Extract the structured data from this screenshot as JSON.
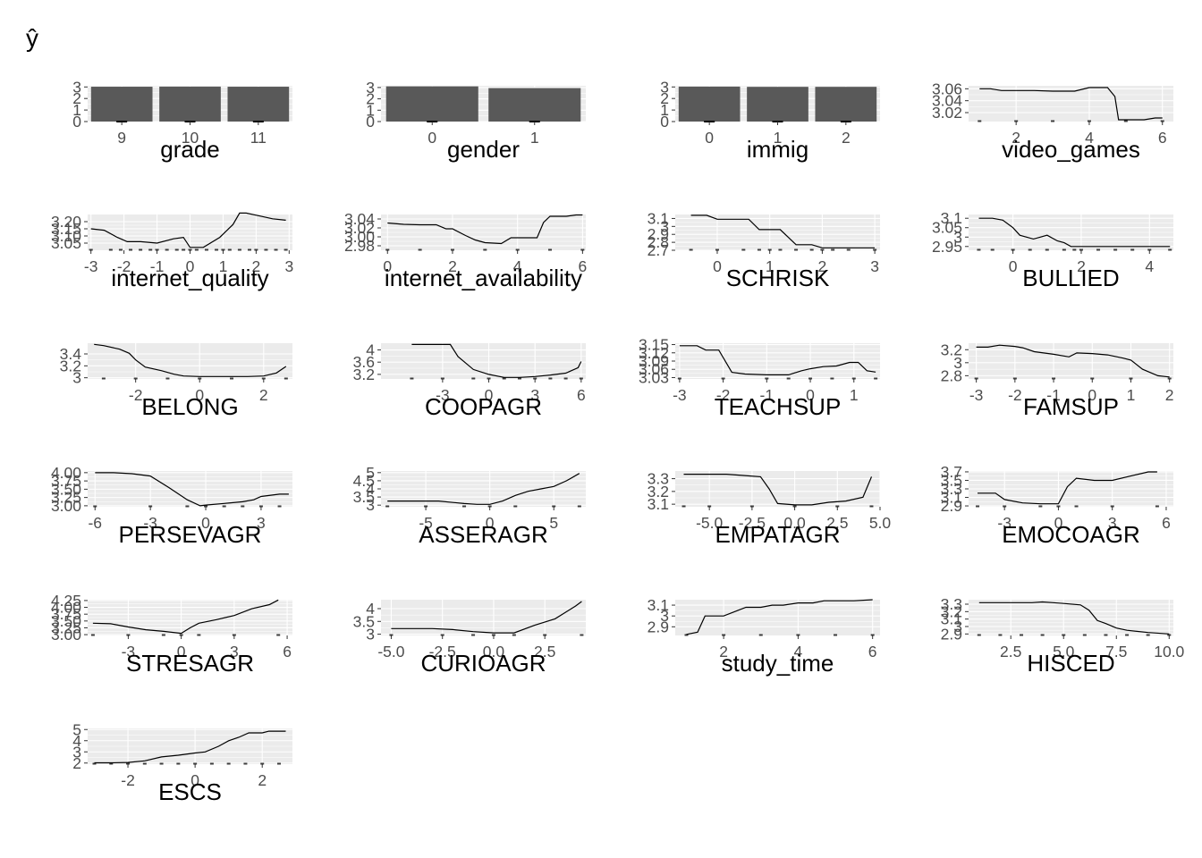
{
  "y_axis_label": "ŷ",
  "colors": {
    "panel": "#ebebeb",
    "grid": "#ffffff",
    "line": "#000000",
    "bar": "#595959",
    "rug": "#000000",
    "tick_text": "#4d4d4d"
  },
  "chart_data": [
    {
      "type": "bar",
      "xlabel": "grade",
      "xticks": [
        "9",
        "10",
        "11"
      ],
      "categories": [
        "9",
        "10",
        "11"
      ],
      "values": [
        3.02,
        3.03,
        3.02
      ],
      "yticks": [
        0,
        1,
        2,
        3
      ],
      "ylim": [
        0,
        3.1
      ]
    },
    {
      "type": "bar",
      "xlabel": "gender",
      "xticks": [
        "0",
        "1"
      ],
      "categories": [
        "0",
        "1"
      ],
      "values": [
        3.1,
        2.95
      ],
      "yticks": [
        0,
        1,
        2,
        3
      ],
      "ylim": [
        0,
        3.15
      ]
    },
    {
      "type": "bar",
      "xlabel": "immig",
      "xticks": [
        "0",
        "1",
        "2"
      ],
      "categories": [
        "0",
        "1",
        "2"
      ],
      "values": [
        3.03,
        3.01,
        3.01
      ],
      "yticks": [
        0,
        1,
        2,
        3
      ],
      "ylim": [
        0,
        3.1
      ]
    },
    {
      "type": "line",
      "xlabel": "video_games",
      "xlim": [
        0.7,
        6.3
      ],
      "xticks": [
        2,
        4,
        6
      ],
      "ylim": [
        3.005,
        3.065
      ],
      "yticks": [
        3.02,
        3.04,
        3.06
      ],
      "x": [
        1,
        1.3,
        1.6,
        2,
        2.5,
        3,
        3.5,
        3.6,
        4,
        4.3,
        4.5,
        4.7,
        4.8,
        5.1,
        5.5,
        5.8,
        6
      ],
      "y": [
        3.06,
        3.06,
        3.057,
        3.057,
        3.057,
        3.056,
        3.056,
        3.056,
        3.062,
        3.062,
        3.062,
        3.047,
        3.008,
        3.008,
        3.008,
        3.011,
        3.011
      ],
      "rug": [
        1,
        2,
        3,
        4,
        5,
        6
      ]
    },
    {
      "type": "line",
      "xlabel": "internet_quality",
      "xlim": [
        -3.1,
        3.1
      ],
      "xticks": [
        -3,
        -2,
        -1,
        0,
        1,
        2,
        3
      ],
      "ytick_labels": [
        "3.05",
        "3.10",
        "3.15",
        "3.20"
      ],
      "yticks": [
        3.05,
        3.1,
        3.15,
        3.2
      ],
      "ylim": [
        3.0,
        3.25
      ],
      "x": [
        -3,
        -2.6,
        -2.2,
        -1.9,
        -1.5,
        -1,
        -0.5,
        -0.2,
        0,
        0.4,
        0.9,
        1.3,
        1.5,
        1.7,
        2.1,
        2.5,
        2.9
      ],
      "y": [
        3.15,
        3.14,
        3.09,
        3.06,
        3.06,
        3.05,
        3.08,
        3.09,
        3.02,
        3.02,
        3.09,
        3.18,
        3.26,
        3.26,
        3.24,
        3.22,
        3.21
      ],
      "rug": [
        -3,
        -2.4,
        -2.1,
        -1.8,
        -1.5,
        -1.2,
        -1,
        -0.7,
        -0.4,
        -0.2,
        0,
        0.2,
        0.5,
        0.8,
        1,
        1.2,
        1.5,
        1.8,
        2,
        2.3,
        2.6,
        2.9
      ]
    },
    {
      "type": "line",
      "xlabel": "internet_availability",
      "xlim": [
        -0.2,
        6.1
      ],
      "xticks": [
        0,
        2,
        4,
        6
      ],
      "ytick_labels": [
        "2.98",
        "3.00",
        "3.02",
        "3.04"
      ],
      "yticks": [
        2.98,
        3.0,
        3.02,
        3.04
      ],
      "ylim": [
        2.97,
        3.05
      ],
      "x": [
        0,
        0.5,
        1,
        1.5,
        1.8,
        2,
        2.4,
        2.7,
        3,
        3.5,
        3.8,
        4,
        4.6,
        4.8,
        5,
        5.5,
        5.8,
        6
      ],
      "y": [
        3.031,
        3.028,
        3.027,
        3.027,
        3.018,
        3.018,
        3.003,
        2.993,
        2.987,
        2.985,
        2.998,
        2.998,
        2.998,
        3.032,
        3.046,
        3.046,
        3.049,
        3.049
      ],
      "rug": [
        0,
        1,
        2,
        3,
        4,
        5,
        6
      ]
    },
    {
      "type": "line",
      "xlabel": "SCHRISK",
      "xlim": [
        -0.8,
        3.1
      ],
      "xticks": [
        0,
        1,
        2,
        3
      ],
      "yticks": [
        2.7,
        2.8,
        2.9,
        3.0,
        3.1
      ],
      "ylim": [
        2.7,
        3.15
      ],
      "x": [
        -0.5,
        -0.2,
        0,
        0.3,
        0.6,
        0.8,
        1,
        1.2,
        1.5,
        1.8,
        2,
        2.3,
        2.6,
        3
      ],
      "y": [
        3.14,
        3.14,
        3.09,
        3.09,
        3.09,
        2.96,
        2.96,
        2.96,
        2.77,
        2.77,
        2.73,
        2.73,
        2.73,
        2.73
      ],
      "rug": [
        -0.5,
        0,
        0.5,
        0.8,
        1,
        1.2,
        1.5,
        1.8,
        2,
        2.2,
        2.5,
        3
      ]
    },
    {
      "type": "line",
      "xlabel": "BULLIED",
      "xlim": [
        -1.3,
        4.7
      ],
      "xticks": [
        0,
        2,
        4
      ],
      "yticks": [
        2.95,
        3.0,
        3.05,
        3.1
      ],
      "ylim": [
        2.93,
        3.12
      ],
      "x": [
        -1,
        -0.6,
        -0.3,
        0,
        0.2,
        0.4,
        0.6,
        0.8,
        1,
        1.3,
        1.5,
        1.7,
        2,
        2.5,
        3,
        3.5,
        4,
        4.6
      ],
      "y": [
        3.1,
        3.1,
        3.09,
        3.05,
        3.01,
        3.0,
        2.99,
        3.0,
        3.01,
        2.98,
        2.97,
        2.95,
        2.95,
        2.95,
        2.95,
        2.95,
        2.95,
        2.95
      ],
      "rug": [
        -1,
        -0.6,
        0,
        0.5,
        1,
        1.5,
        1.8,
        2,
        2.5,
        3,
        3.5,
        4,
        4.6
      ]
    },
    {
      "type": "line",
      "xlabel": "BELONG",
      "xlim": [
        -3.5,
        2.9
      ],
      "xticks": [
        -2,
        0,
        2
      ],
      "yticks": [
        3.0,
        3.2,
        3.4
      ],
      "ylim": [
        2.98,
        3.58
      ],
      "x": [
        -3.3,
        -3,
        -2.5,
        -2.2,
        -2,
        -1.7,
        -1.2,
        -0.8,
        -0.5,
        0,
        0.5,
        1,
        1.5,
        2,
        2.4,
        2.7
      ],
      "y": [
        3.56,
        3.54,
        3.48,
        3.41,
        3.3,
        3.18,
        3.12,
        3.06,
        3.03,
        3.02,
        3.02,
        3.02,
        3.02,
        3.03,
        3.08,
        3.19
      ],
      "rug": [
        -3,
        -2,
        -1,
        0,
        1,
        2,
        2.7
      ]
    },
    {
      "type": "line",
      "xlabel": "COOPAGR",
      "xlim": [
        -7,
        6.3
      ],
      "xticks": [
        -3,
        0,
        3,
        6
      ],
      "yticks": [
        3.2,
        3.6,
        4.0
      ],
      "ylim": [
        3.05,
        4.22
      ],
      "x": [
        -5,
        -4,
        -3,
        -2.5,
        -2,
        -1,
        0,
        1,
        2,
        3,
        4,
        5,
        5.8,
        6
      ],
      "y": [
        4.18,
        4.18,
        4.18,
        4.18,
        3.78,
        3.36,
        3.2,
        3.1,
        3.1,
        3.13,
        3.18,
        3.24,
        3.42,
        3.62
      ],
      "rug": [
        -5,
        -3,
        -1,
        0,
        1,
        2,
        3,
        4,
        5,
        6
      ]
    },
    {
      "type": "line",
      "xlabel": "TEACHSUP",
      "xlim": [
        -3.1,
        1.6
      ],
      "xticks": [
        -3,
        -2,
        -1,
        0,
        1
      ],
      "ytick_labels": [
        "3.03",
        "3.06",
        "3.09",
        "3.12",
        "3.15"
      ],
      "yticks": [
        3.03,
        3.06,
        3.09,
        3.12,
        3.15
      ],
      "ylim": [
        3.025,
        3.155
      ],
      "x": [
        -3,
        -2.6,
        -2.4,
        -2.1,
        -1.8,
        -1.5,
        -1,
        -0.5,
        -0.2,
        0,
        0.3,
        0.6,
        0.9,
        1.1,
        1.3,
        1.5
      ],
      "y": [
        3.146,
        3.146,
        3.13,
        3.13,
        3.049,
        3.043,
        3.04,
        3.04,
        3.055,
        3.062,
        3.07,
        3.072,
        3.085,
        3.085,
        3.055,
        3.05
      ],
      "rug": [
        -3,
        -2,
        -1,
        -0.5,
        0,
        0.5,
        1,
        1.5
      ]
    },
    {
      "type": "line",
      "xlabel": "FAMSUP",
      "xlim": [
        -3.2,
        2.1
      ],
      "xticks": [
        -3,
        -2,
        -1,
        0,
        1,
        2
      ],
      "yticks": [
        2.8,
        3.0,
        3.2
      ],
      "ylim": [
        2.75,
        3.3
      ],
      "x": [
        -3,
        -2.7,
        -2.4,
        -2,
        -1.8,
        -1.5,
        -1,
        -0.6,
        -0.4,
        0,
        0.4,
        0.8,
        1,
        1.3,
        1.7,
        2
      ],
      "y": [
        3.24,
        3.24,
        3.27,
        3.25,
        3.23,
        3.17,
        3.13,
        3.09,
        3.15,
        3.14,
        3.12,
        3.07,
        3.04,
        2.9,
        2.8,
        2.78
      ],
      "rug": [
        -3,
        -2,
        -1,
        0,
        1,
        2
      ]
    },
    {
      "type": "line",
      "xlabel": "PERSEVAGR",
      "xlim": [
        -6.4,
        4.7
      ],
      "xticks": [
        -6,
        -3,
        0,
        3
      ],
      "ytick_labels": [
        "3.00",
        "3.25",
        "3.50",
        "3.75",
        "4.00"
      ],
      "yticks": [
        3.0,
        3.25,
        3.5,
        3.75,
        4.0
      ],
      "ylim": [
        2.97,
        4.05
      ],
      "x": [
        -6,
        -5,
        -4,
        -3,
        -2,
        -1,
        -0.3,
        0,
        1,
        2,
        2.6,
        3,
        4,
        4.5
      ],
      "y": [
        4.0,
        4.0,
        3.97,
        3.9,
        3.55,
        3.18,
        3.0,
        3.02,
        3.07,
        3.12,
        3.18,
        3.28,
        3.35,
        3.35
      ],
      "rug": [
        -6,
        -3,
        -1,
        0,
        1,
        2,
        3,
        4
      ]
    },
    {
      "type": "line",
      "xlabel": "ASSERAGR",
      "xlim": [
        -8.5,
        7.5
      ],
      "xticks": [
        -5,
        0,
        5
      ],
      "yticks": [
        3.0,
        3.5,
        4.0,
        4.5,
        5.0
      ],
      "ylim": [
        2.9,
        5.1
      ],
      "x": [
        -8,
        -6,
        -4,
        -2,
        -1,
        0,
        1,
        2,
        3,
        4,
        5,
        6,
        7
      ],
      "y": [
        3.25,
        3.25,
        3.25,
        3.1,
        3.05,
        3.05,
        3.25,
        3.6,
        3.85,
        4.0,
        4.15,
        4.5,
        4.95
      ],
      "rug": [
        -8,
        -5,
        -2,
        0,
        2,
        5,
        7
      ]
    },
    {
      "type": "line",
      "xlabel": "EMPATAGR",
      "xlim": [
        -7,
        5
      ],
      "xticks": [
        -5,
        -2.5,
        0,
        2.5,
        5
      ],
      "xtick_labels": [
        "-5.0",
        "-2.5",
        "0.0",
        "2.5",
        "5.0"
      ],
      "yticks": [
        3.1,
        3.2,
        3.3
      ],
      "ylim": [
        3.08,
        3.36
      ],
      "x": [
        -6.5,
        -5,
        -4,
        -3,
        -2,
        -1.5,
        -1,
        0,
        1,
        2,
        3,
        4,
        4.5
      ],
      "y": [
        3.335,
        3.335,
        3.335,
        3.325,
        3.315,
        3.22,
        3.105,
        3.095,
        3.095,
        3.115,
        3.125,
        3.155,
        3.315
      ],
      "rug": [
        -6.5,
        -5,
        -2.5,
        0,
        2.5,
        4.5
      ]
    },
    {
      "type": "line",
      "xlabel": "EMOCOAGR",
      "xlim": [
        -5,
        6.4
      ],
      "xticks": [
        -3,
        0,
        3,
        6
      ],
      "yticks": [
        2.9,
        3.1,
        3.3,
        3.5,
        3.7
      ],
      "ylim": [
        2.88,
        3.72
      ],
      "x": [
        -4.5,
        -3.5,
        -3,
        -2,
        -1,
        0,
        0.5,
        1,
        2,
        3,
        4,
        5,
        5.5
      ],
      "y": [
        3.2,
        3.2,
        3.05,
        2.97,
        2.95,
        2.95,
        3.35,
        3.55,
        3.5,
        3.5,
        3.6,
        3.7,
        3.7
      ],
      "rug": [
        -4.5,
        -3,
        -1,
        0,
        1,
        3,
        5.5
      ]
    },
    {
      "type": "line",
      "xlabel": "STRESAGR",
      "xlim": [
        -5.3,
        6.3
      ],
      "xticks": [
        -3,
        0,
        3,
        6
      ],
      "ytick_labels": [
        "3.00",
        "3.25",
        "3.50",
        "3.75",
        "4.00",
        "4.25"
      ],
      "yticks": [
        3.0,
        3.25,
        3.5,
        3.75,
        4.0,
        4.25
      ],
      "ylim": [
        2.97,
        4.28
      ],
      "x": [
        -5,
        -4,
        -3,
        -2,
        -1,
        0,
        0.5,
        1,
        2,
        3,
        4,
        5,
        5.5
      ],
      "y": [
        3.42,
        3.4,
        3.28,
        3.18,
        3.12,
        3.05,
        3.25,
        3.42,
        3.55,
        3.7,
        3.95,
        4.1,
        4.27
      ],
      "rug": [
        -5,
        -3,
        -1,
        0,
        1,
        3,
        5.5
      ]
    },
    {
      "type": "line",
      "xlabel": "CURIOAGR",
      "xlim": [
        -5.5,
        4.5
      ],
      "xticks": [
        -5,
        -2.5,
        0,
        2.5
      ],
      "xtick_labels": [
        "-5.0",
        "-2.5",
        "0.0",
        "2.5"
      ],
      "yticks": [
        3.0,
        3.5,
        4.0
      ],
      "ylim": [
        2.95,
        4.35
      ],
      "x": [
        -5,
        -4,
        -3,
        -2,
        -1,
        0,
        1,
        2,
        3,
        3.5,
        4,
        4.3
      ],
      "y": [
        3.22,
        3.22,
        3.22,
        3.18,
        3.1,
        3.05,
        3.05,
        3.35,
        3.6,
        3.85,
        4.1,
        4.28
      ],
      "rug": [
        -5,
        -2.5,
        -1,
        0,
        1,
        2.5,
        4.3
      ]
    },
    {
      "type": "line",
      "xlabel": "study_time",
      "xlim": [
        0.7,
        6.2
      ],
      "xticks": [
        2,
        4,
        6
      ],
      "yticks": [
        2.9,
        3.0,
        3.1
      ],
      "ylim": [
        2.82,
        3.15
      ],
      "x": [
        1,
        1.3,
        1.5,
        2,
        2.3,
        2.6,
        3,
        3.3,
        3.6,
        4,
        4.4,
        4.7,
        5,
        5.5,
        6
      ],
      "y": [
        2.83,
        2.85,
        3.0,
        3.0,
        3.04,
        3.08,
        3.08,
        3.1,
        3.1,
        3.12,
        3.12,
        3.14,
        3.14,
        3.14,
        3.15
      ],
      "rug": [
        1,
        2,
        3,
        4,
        5,
        6
      ]
    },
    {
      "type": "line",
      "xlabel": "HISCED",
      "xlim": [
        0.5,
        10.2
      ],
      "xticks": [
        2.5,
        5,
        7.5,
        10
      ],
      "xtick_labels": [
        "2.5",
        "5.0",
        "7.5",
        "10.0"
      ],
      "yticks": [
        2.9,
        3.0,
        3.1,
        3.2,
        3.3
      ],
      "ylim": [
        2.88,
        3.36
      ],
      "x": [
        1,
        2,
        3,
        3.5,
        4,
        4.5,
        5,
        5.8,
        6.2,
        6.6,
        7,
        7.5,
        8,
        9,
        10
      ],
      "y": [
        3.32,
        3.32,
        3.32,
        3.32,
        3.33,
        3.32,
        3.31,
        3.29,
        3.22,
        3.08,
        3.04,
        2.98,
        2.95,
        2.92,
        2.9
      ],
      "rug": [
        1,
        2,
        3,
        4,
        5,
        6,
        7,
        8,
        9,
        10
      ]
    },
    {
      "type": "line",
      "xlabel": "ESCS",
      "xlim": [
        -3.2,
        2.9
      ],
      "xticks": [
        -2,
        0,
        2
      ],
      "yticks": [
        2,
        3,
        4,
        5
      ],
      "ylim": [
        1.9,
        5.1
      ],
      "x": [
        -3,
        -2.5,
        -2,
        -1.5,
        -1,
        -0.5,
        0,
        0.3,
        0.7,
        1,
        1.3,
        1.6,
        2,
        2.2,
        2.7
      ],
      "y": [
        2.02,
        2.02,
        2.05,
        2.2,
        2.55,
        2.7,
        2.9,
        3.0,
        3.5,
        4.0,
        4.3,
        4.7,
        4.7,
        4.85,
        4.85
      ],
      "rug": [
        -3,
        -2.5,
        -2,
        -1.5,
        -1,
        -0.5,
        0,
        0.5,
        1,
        1.5,
        2,
        2.5
      ]
    }
  ]
}
